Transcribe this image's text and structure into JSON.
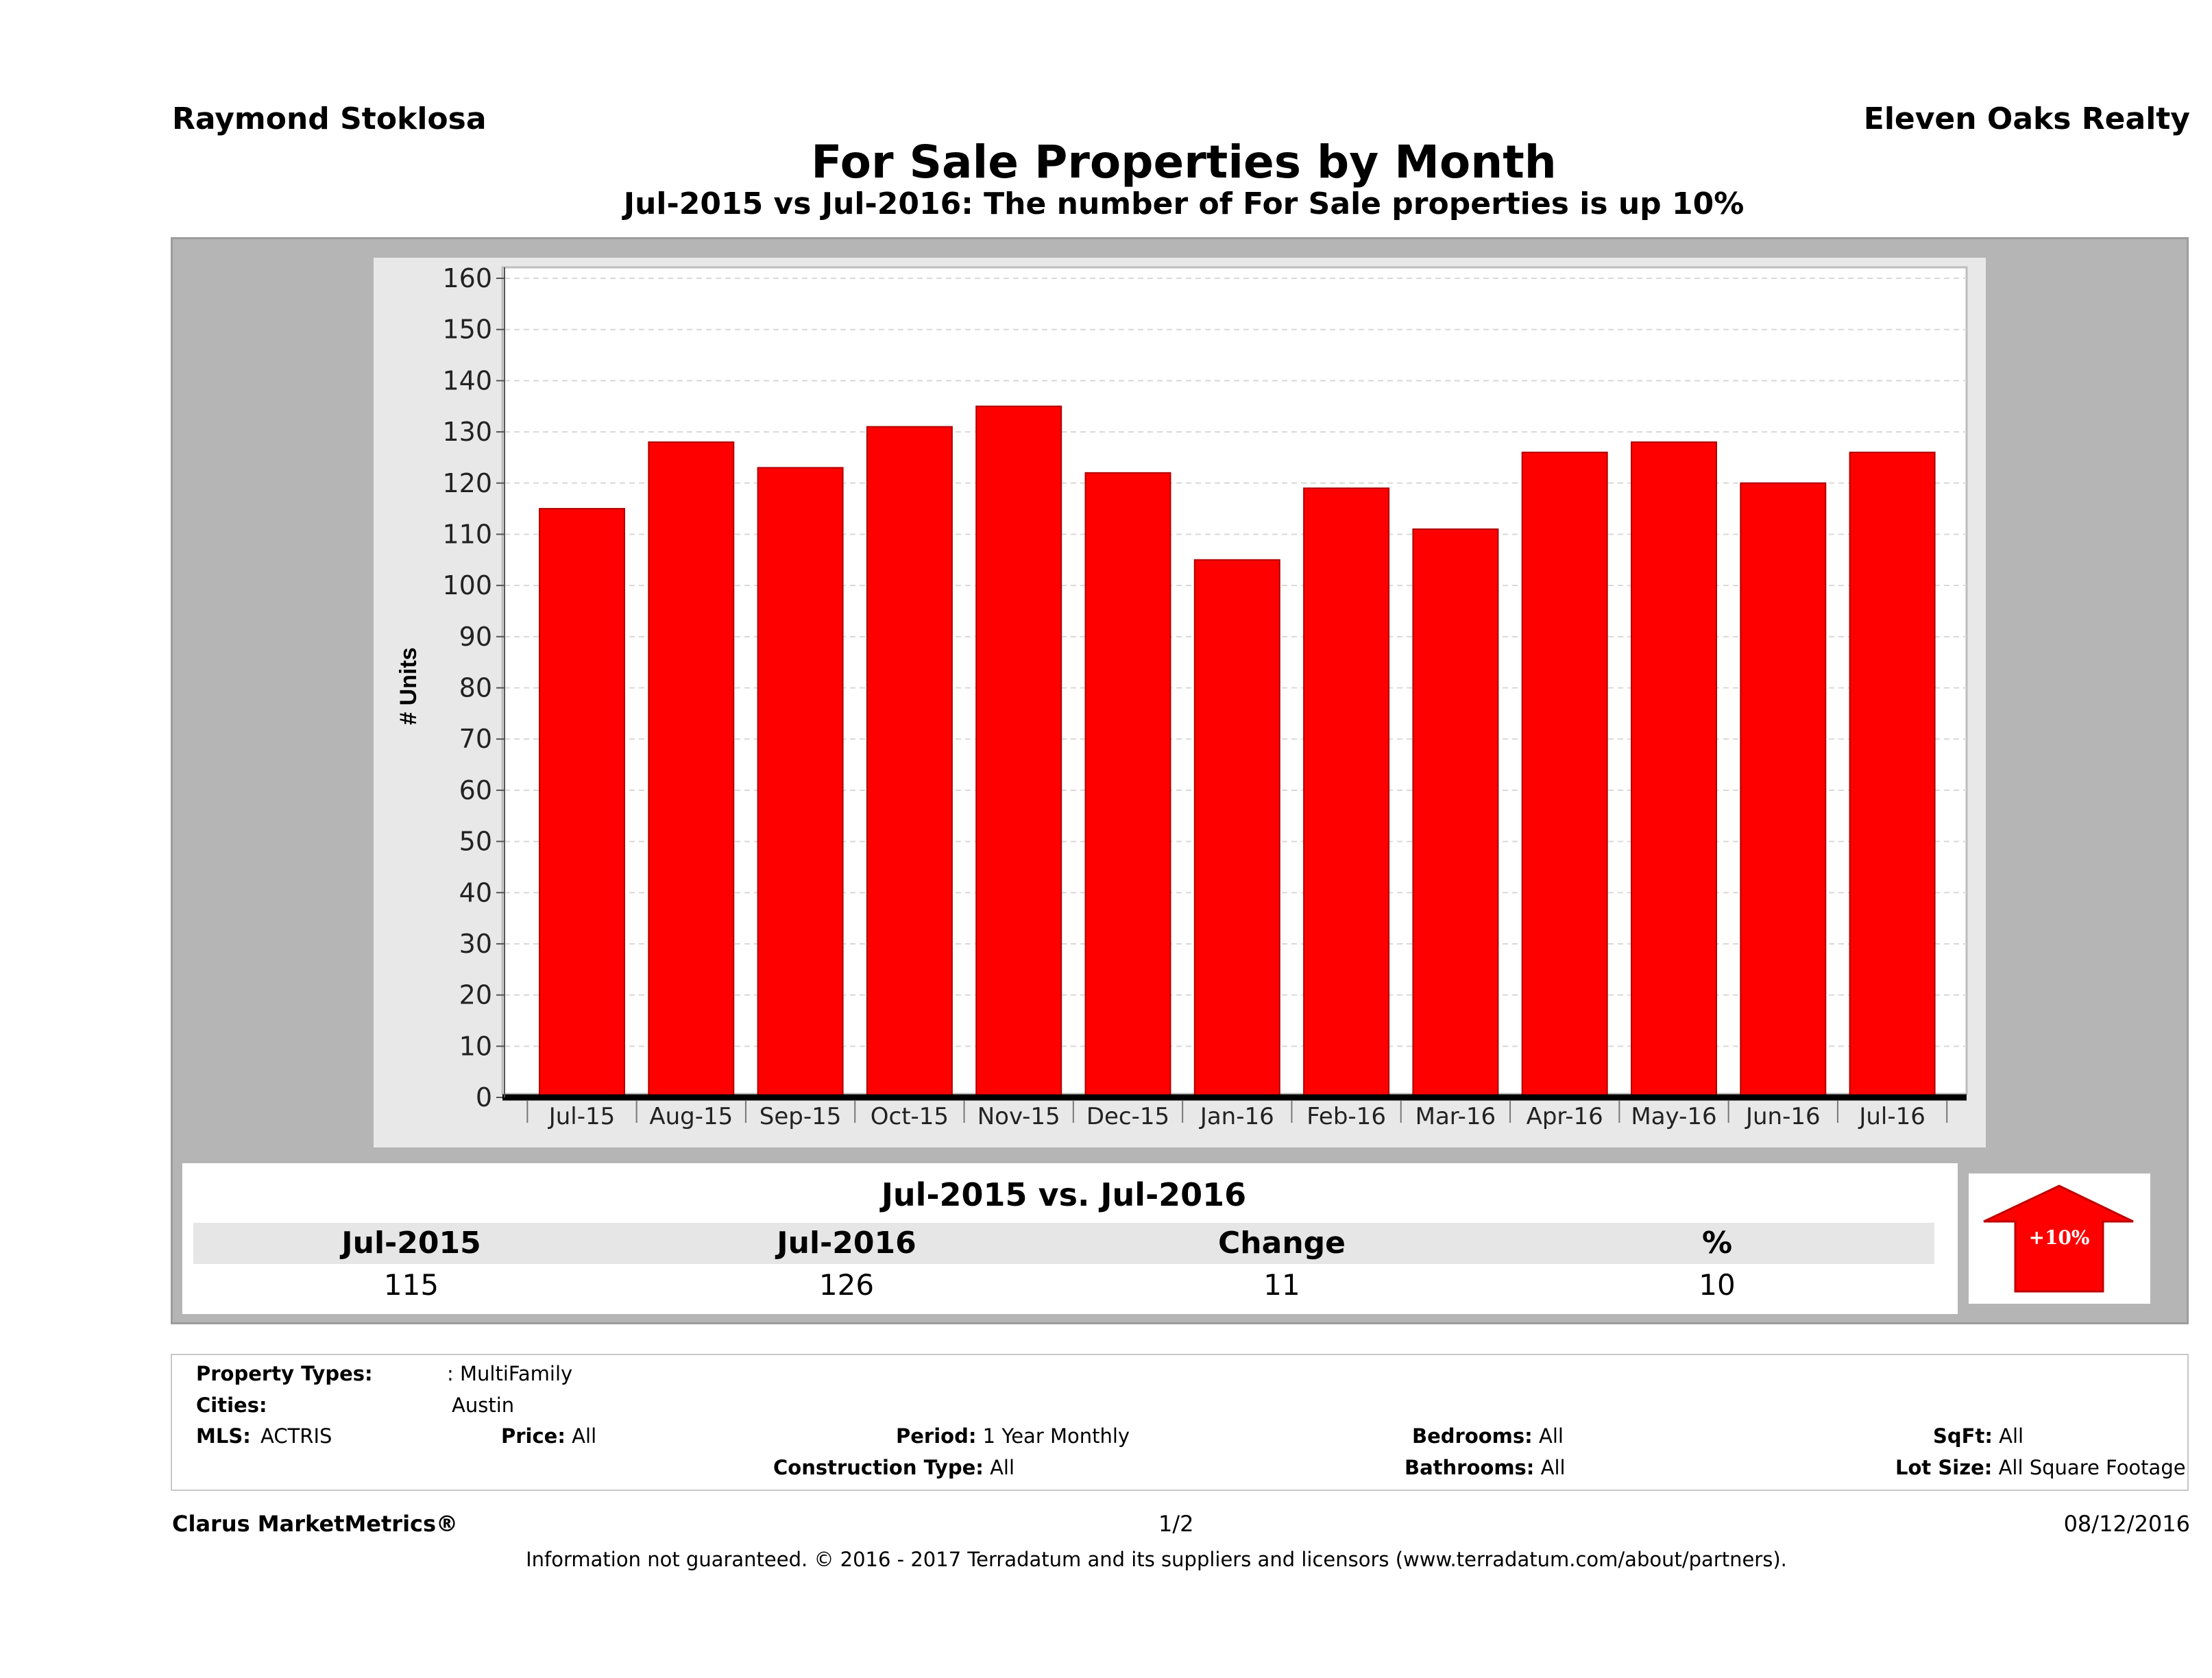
{
  "header": {
    "agent_name": "Raymond Stoklosa",
    "brokerage": "Eleven Oaks Realty",
    "title": "For Sale Properties by Month",
    "subtitle": "Jul-2015 vs Jul-2016: The number of For Sale   properties is up 10%"
  },
  "chart_data": {
    "type": "bar",
    "categories": [
      "Jul-15",
      "Aug-15",
      "Sep-15",
      "Oct-15",
      "Nov-15",
      "Dec-15",
      "Jan-16",
      "Feb-16",
      "Mar-16",
      "Apr-16",
      "May-16",
      "Jun-16",
      "Jul-16"
    ],
    "values": [
      115,
      128,
      123,
      131,
      135,
      122,
      105,
      119,
      111,
      126,
      128,
      120,
      126
    ],
    "ylabel": "# Units",
    "ylim": [
      0,
      160
    ],
    "yticks": [
      0,
      10,
      20,
      30,
      40,
      50,
      60,
      70,
      80,
      90,
      100,
      110,
      120,
      130,
      140,
      150,
      160
    ],
    "grid": true,
    "bar_color": "#ff0000"
  },
  "comparison": {
    "title": "Jul-2015 vs. Jul-2016",
    "headers": [
      "Jul-2015",
      "Jul-2016",
      "Change",
      "%"
    ],
    "values": [
      "115",
      "126",
      "11",
      "10"
    ],
    "badge": "+10%",
    "badge_color": "#ff0000"
  },
  "criteria": {
    "property_types_label": "Property Types:",
    "property_types_value": ": MultiFamily",
    "cities_label": "Cities:",
    "cities_value": "Austin",
    "mls_label": "MLS:",
    "mls_value": "ACTRIS",
    "price_label": "Price:",
    "price_value": "All",
    "period_label": "Period:",
    "period_value": "1 Year Monthly",
    "construction_label": "Construction Type:",
    "construction_value": "All",
    "bedrooms_label": "Bedrooms:",
    "bedrooms_value": "All",
    "bathrooms_label": "Bathrooms:",
    "bathrooms_value": "All",
    "sqft_label": "SqFt:",
    "sqft_value": "All",
    "lotsize_label": "Lot Size:",
    "lotsize_value": "All Square Footage"
  },
  "footer": {
    "product": "Clarus MarketMetrics®",
    "page": "1/2",
    "date": "08/12/2016",
    "disclaimer": "Information not guaranteed. © 2016 - 2017 Terradatum and its suppliers and licensors (www.terradatum.com/about/partners)."
  }
}
